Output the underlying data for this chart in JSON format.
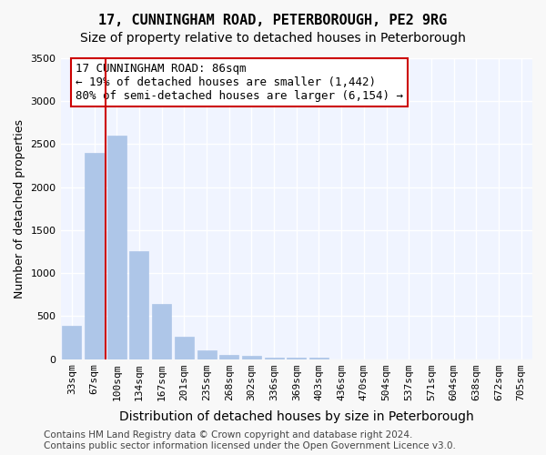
{
  "title": "17, CUNNINGHAM ROAD, PETERBOROUGH, PE2 9RG",
  "subtitle": "Size of property relative to detached houses in Peterborough",
  "xlabel": "Distribution of detached houses by size in Peterborough",
  "ylabel": "Number of detached properties",
  "categories": [
    "33sqm",
    "67sqm",
    "100sqm",
    "134sqm",
    "167sqm",
    "201sqm",
    "235sqm",
    "268sqm",
    "302sqm",
    "336sqm",
    "369sqm",
    "403sqm",
    "436sqm",
    "470sqm",
    "504sqm",
    "537sqm",
    "571sqm",
    "604sqm",
    "638sqm",
    "672sqm",
    "705sqm"
  ],
  "values": [
    390,
    2400,
    2600,
    1250,
    640,
    260,
    100,
    50,
    35,
    20,
    20,
    20,
    0,
    0,
    0,
    0,
    0,
    0,
    0,
    0,
    0
  ],
  "bar_color": "#aec6e8",
  "bar_edgecolor": "#aec6e8",
  "vline_x": 1.5,
  "vline_color": "#cc0000",
  "ylim": [
    0,
    3500
  ],
  "yticks": [
    0,
    500,
    1000,
    1500,
    2000,
    2500,
    3000,
    3500
  ],
  "annotation_text": "17 CUNNINGHAM ROAD: 86sqm\n← 19% of detached houses are smaller (1,442)\n80% of semi-detached houses are larger (6,154) →",
  "annotation_box_color": "#ffffff",
  "annotation_box_edgecolor": "#cc0000",
  "footer_line1": "Contains HM Land Registry data © Crown copyright and database right 2024.",
  "footer_line2": "Contains public sector information licensed under the Open Government Licence v3.0.",
  "background_color": "#f0f4ff",
  "grid_color": "#ffffff",
  "title_fontsize": 11,
  "subtitle_fontsize": 10,
  "xlabel_fontsize": 10,
  "ylabel_fontsize": 9,
  "tick_fontsize": 8,
  "annotation_fontsize": 9,
  "footer_fontsize": 7.5
}
